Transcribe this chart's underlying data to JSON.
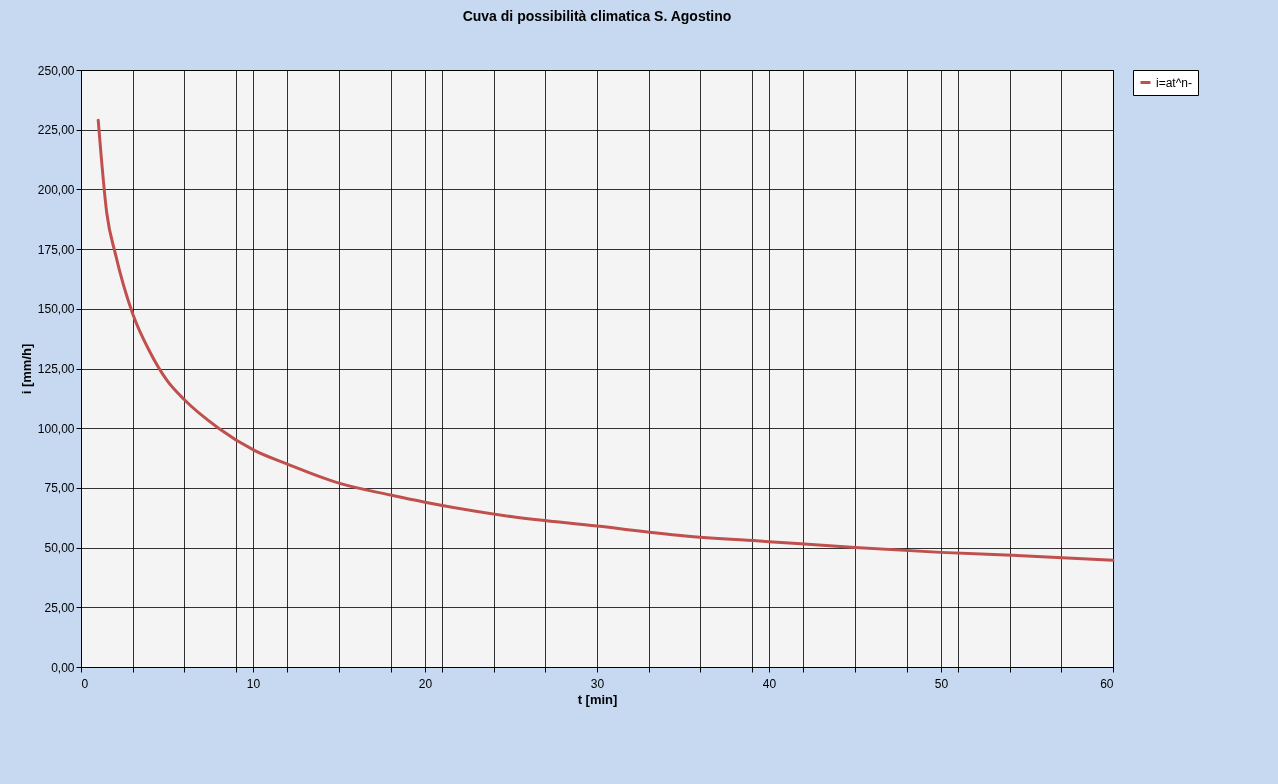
{
  "chart_data": {
    "type": "line",
    "title": "Cuva di possibilità  climatica   S. Agostino",
    "xlabel": "t [min]",
    "ylabel": "i [mm/h]",
    "xlim": [
      0,
      60
    ],
    "ylim": [
      0,
      250
    ],
    "xticks": [
      0,
      {
        "value": 3,
        "label": null
      },
      {
        "value": 6,
        "label": null
      },
      {
        "value": 9,
        "label": null
      },
      10,
      {
        "value": 12,
        "label": null
      },
      {
        "value": 15,
        "label": null
      },
      {
        "value": 18,
        "label": null
      },
      20,
      {
        "value": 21,
        "label": null
      },
      {
        "value": 24,
        "label": null
      },
      {
        "value": 27,
        "label": null
      },
      30,
      {
        "value": 33,
        "label": null
      },
      {
        "value": 36,
        "label": null
      },
      {
        "value": 39,
        "label": null
      },
      40,
      {
        "value": 42,
        "label": null
      },
      {
        "value": 45,
        "label": null
      },
      {
        "value": 48,
        "label": null
      },
      50,
      {
        "value": 51,
        "label": null
      },
      {
        "value": 54,
        "label": null
      },
      {
        "value": 57,
        "label": null
      },
      60
    ],
    "yticks": [
      {
        "value": 0,
        "label": "0,00"
      },
      {
        "value": 25,
        "label": "25,00"
      },
      {
        "value": 50,
        "label": "50,00"
      },
      {
        "value": 75,
        "label": "75,00"
      },
      {
        "value": 100,
        "label": "100,00"
      },
      {
        "value": 125,
        "label": "125,00"
      },
      {
        "value": 150,
        "label": "150,00"
      },
      {
        "value": 175,
        "label": "175,00"
      },
      {
        "value": 200,
        "label": "200,00"
      },
      {
        "value": 225,
        "label": "225,00"
      },
      {
        "value": 250,
        "label": "250,00"
      }
    ],
    "grid": true,
    "legend": "right",
    "line_style": "solid",
    "series": [
      {
        "name": "i=at^n-",
        "color": "#c0504d",
        "x": [
          1,
          1.5,
          2,
          3,
          4,
          5,
          6,
          8,
          10,
          12,
          15,
          18,
          20,
          25,
          30,
          35,
          40,
          45,
          50,
          55,
          60
        ],
        "values": [
          229,
          190,
          173,
          148,
          132,
          120,
          112,
          100,
          91,
          85,
          77,
          72,
          69,
          63,
          59,
          55,
          52.5,
          50,
          48,
          46.5,
          44.7
        ]
      }
    ]
  }
}
